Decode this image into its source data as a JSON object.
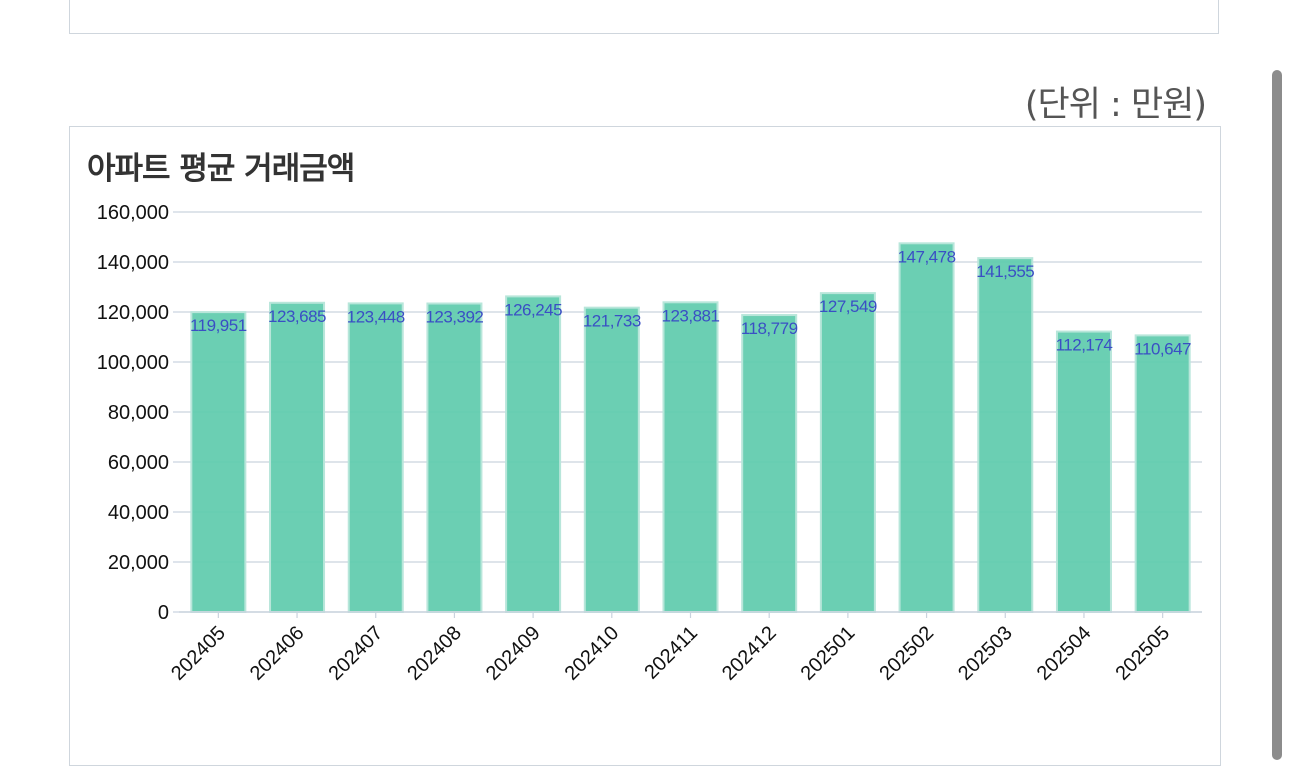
{
  "top_card": {
    "text_fragment": ""
  },
  "unit_label": "(단위 : 만원)",
  "chart_data": {
    "type": "bar",
    "title": "아파트 평균 거래금액",
    "xlabel": "",
    "ylabel": "",
    "categories": [
      "202405",
      "202406",
      "202407",
      "202408",
      "202409",
      "202410",
      "202411",
      "202412",
      "202501",
      "202502",
      "202503",
      "202504",
      "202505"
    ],
    "values": [
      119951,
      123685,
      123448,
      123392,
      126245,
      121733,
      123881,
      118779,
      127549,
      147478,
      141555,
      112174,
      110647
    ],
    "value_labels": [
      "119,951",
      "123,685",
      "123,448",
      "123,392",
      "126,245",
      "121,733",
      "123,881",
      "118,779",
      "127,549",
      "147,478",
      "141,555",
      "112,174",
      "110,647"
    ],
    "ylim": [
      0,
      160000
    ],
    "yticks": [
      0,
      20000,
      40000,
      60000,
      80000,
      100000,
      120000,
      140000,
      160000
    ],
    "ytick_labels": [
      "0",
      "20,000",
      "40,000",
      "60,000",
      "80,000",
      "100,000",
      "120,000",
      "140,000",
      "160,000"
    ],
    "grid": true,
    "legend": "none",
    "colors": {
      "bar_fill": "#5ecbad",
      "bar_stroke": "#b8e6da",
      "data_label": "#3a4fc4",
      "grid": "#c9d3de",
      "axis_text": "#111111"
    }
  }
}
